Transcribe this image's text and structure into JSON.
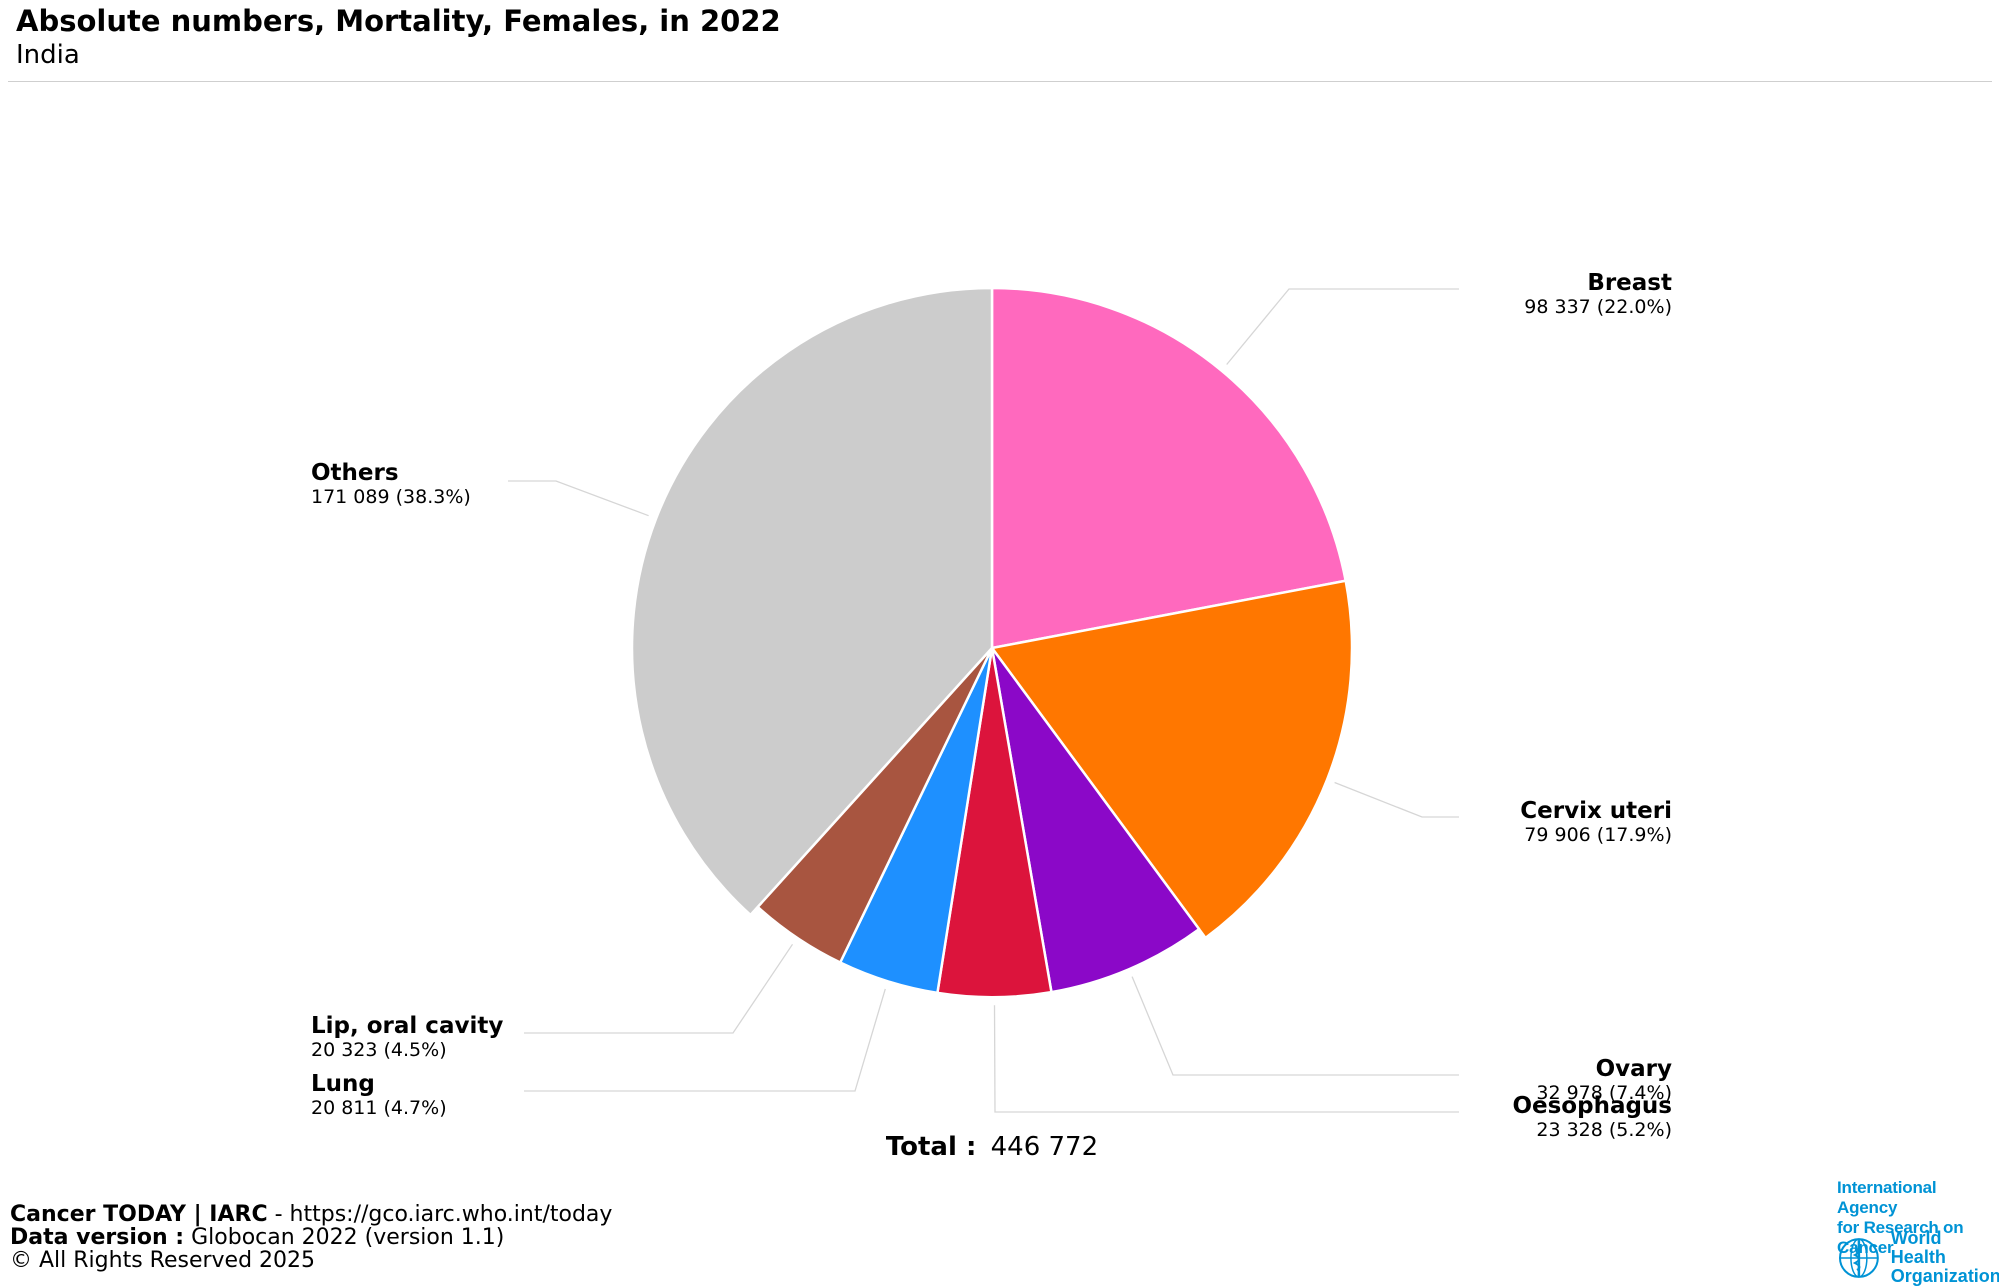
{
  "header": {
    "title": "Absolute numbers, Mortality, Females, in 2022",
    "subtitle": "India"
  },
  "chart_data": {
    "type": "pie",
    "title": "Absolute numbers, Mortality, Females, in 2022",
    "subtitle": "India",
    "slices": [
      {
        "label": "Breast",
        "value": 98337,
        "value_text": "98 337",
        "percent": 22.0,
        "color": "#FF69BE"
      },
      {
        "label": "Cervix uteri",
        "value": 79906,
        "value_text": "79 906",
        "percent": 17.9,
        "color": "#FF7700"
      },
      {
        "label": "Ovary",
        "value": 32978,
        "value_text": "32 978",
        "percent": 7.4,
        "color": "#8B08C8"
      },
      {
        "label": "Oesophagus",
        "value": 23328,
        "value_text": "23 328",
        "percent": 5.2,
        "color": "#DC143C"
      },
      {
        "label": "Lung",
        "value": 20811,
        "value_text": "20 811",
        "percent": 4.7,
        "color": "#1E90FF"
      },
      {
        "label": "Lip, oral cavity",
        "value": 20323,
        "value_text": "20 323",
        "percent": 4.5,
        "color": "#A85540"
      },
      {
        "label": "Others",
        "value": 171089,
        "value_text": "171 089",
        "percent": 38.3,
        "color": "#CCCCCC"
      }
    ],
    "total_label": "Total :",
    "total_value": "446 772"
  },
  "footer": {
    "line1_bold": "Cancer TODAY | IARC",
    "line1_rest": " - https://gco.iarc.who.int/today",
    "line2_bold": "Data version :",
    "line2_rest": " Globocan 2022 (version 1.1)",
    "line3": "© All Rights Reserved 2025"
  },
  "logos": {
    "iarc_line1": "International Agency",
    "iarc_line2": "for Research on Cancer",
    "who_line1": "World Health",
    "who_line2": "Organization"
  }
}
